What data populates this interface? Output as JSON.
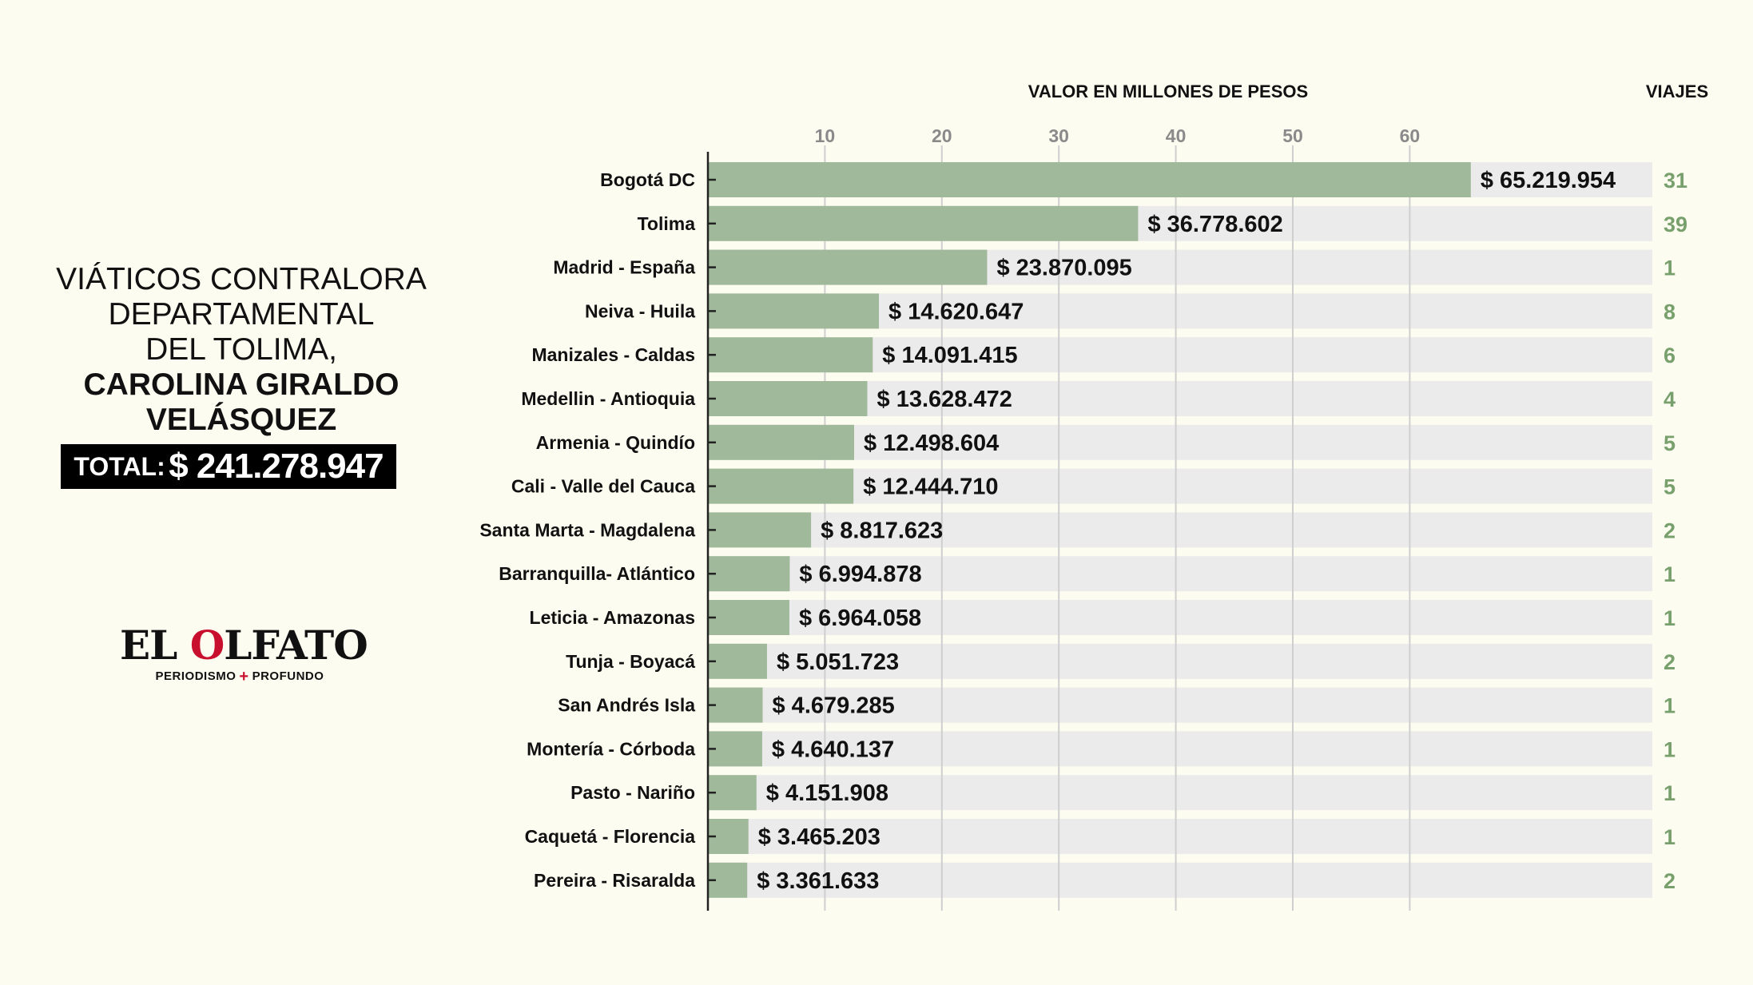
{
  "title": {
    "line1": "VIÁTICOS CONTRALORA",
    "line2": "DEPARTAMENTAL",
    "line3": "DEL TOLIMA,",
    "line4": "CAROLINA GIRALDO",
    "line5": "VELÁSQUEZ",
    "total_label": "TOTAL:",
    "total_value": "$ 241.278.947"
  },
  "logo": {
    "text_before": "EL ",
    "text_accent": "O",
    "text_after": "LFATO",
    "tag_left": "PERIODISMO",
    "tag_plus": "+",
    "tag_right": "PROFUNDO"
  },
  "colors": {
    "bar": "#a0b99a",
    "track": "#ebebeb",
    "trips": "#78a06c",
    "logo_accent": "#c8102e",
    "background": "#fdfcf0"
  },
  "chart_data": {
    "type": "bar",
    "orientation": "horizontal",
    "xlabel": "VALOR EN MILLONES DE PESOS",
    "trips_label": "VIAJES",
    "xticks": [
      10,
      20,
      30,
      40,
      50,
      60
    ],
    "xlim": [
      0,
      80.7
    ],
    "grid": true,
    "categories": [
      "Bogotá DC",
      "Tolima",
      "Madrid - España",
      "Neiva - Huila",
      "Manizales - Caldas",
      "Medellin - Antioquia",
      "Armenia - Quindío",
      "Cali - Valle del Cauca",
      "Santa Marta - Magdalena",
      "Barranquilla- Atlántico",
      "Leticia - Amazonas",
      "Tunja - Boyacá",
      "San Andrés Isla",
      "Montería - Córboda",
      "Pasto - Nariño",
      "Caquetá - Florencia",
      "Pereira - Risaralda"
    ],
    "values": [
      65.219954,
      36.778602,
      23.870095,
      14.620647,
      14.091415,
      13.628472,
      12.498604,
      12.44471,
      8.817623,
      6.994878,
      6.964058,
      5.051723,
      4.679285,
      4.640137,
      4.151908,
      3.465203,
      3.361633
    ],
    "value_labels": [
      "$ 65.219.954",
      "$ 36.778.602",
      "$ 23.870.095",
      "$ 14.620.647",
      "$ 14.091.415",
      "$ 13.628.472",
      "$ 12.498.604",
      "$ 12.444.710",
      "$ 8.817.623",
      "$ 6.994.878",
      "$ 6.964.058",
      "$ 5.051.723",
      "$ 4.679.285",
      "$ 4.640.137",
      "$ 4.151.908",
      "$ 3.465.203",
      "$ 3.361.633"
    ],
    "trips": [
      "31",
      "39",
      "1",
      "8",
      "6",
      "4",
      "5",
      "5",
      "2",
      "1",
      "1",
      "2",
      "1",
      "1",
      "1",
      "1",
      "2"
    ]
  }
}
